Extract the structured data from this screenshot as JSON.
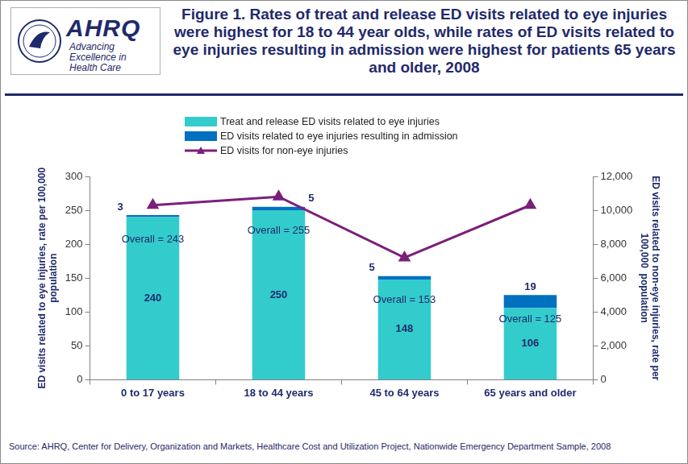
{
  "logo": {
    "name": "AHRQ",
    "tagline": "Advancing Excellence in Health Care"
  },
  "source": "Source: AHRQ, Center for Delivery, Organization and Markets, Healthcare Cost and Utilization Project, Nationwide Emergency Department Sample, 2008",
  "chart_data": {
    "type": "bar",
    "title": "Figure 1. Rates of treat and release ED visits related to eye injuries were highest for 18 to 44 year olds, while rates of ED visits related to eye injuries resulting in admission were highest for patients 65 years and older, 2008",
    "categories": [
      "0 to 17 years",
      "18 to 44 years",
      "45 to 64 years",
      "65 years and older"
    ],
    "stacked": true,
    "data_labels": true,
    "grid": false,
    "legend": "top",
    "y_label": "ED visits related to eye injuries, rate per 100,000 population",
    "y2_label": "ED visits related to non-eye injuries, rate per 100,000  population",
    "ylim": [
      0,
      300
    ],
    "yticks": [
      0,
      50,
      100,
      150,
      200,
      250,
      300
    ],
    "y2lim": [
      0,
      12000
    ],
    "y2ticks": [
      0,
      {
        "value": 2000,
        "label": "2,000"
      },
      {
        "value": 4000,
        "label": "4,000"
      },
      {
        "value": 6000,
        "label": "6,000"
      },
      {
        "value": 8000,
        "label": "8,000"
      },
      {
        "value": 10000,
        "label": "10,000"
      },
      {
        "value": 12000,
        "label": "12,000"
      }
    ],
    "series": [
      {
        "name": "Treat and release ED visits related to eye injuries",
        "color": "#33cccc",
        "values": [
          240,
          250,
          148,
          106
        ]
      },
      {
        "name": "ED visits related to eye injuries resulting in admission",
        "color": "#0070c0",
        "values": [
          3,
          5,
          5,
          19
        ]
      },
      {
        "name": "ED visits for non-eye injuries",
        "type": "line",
        "axis": "y2",
        "color": "#7b1f7b",
        "marker": "triangle",
        "data_labels": false,
        "values": [
          10300,
          10800,
          7200,
          10300
        ]
      }
    ],
    "annotations": [
      "Overall = 243",
      "Overall = 255",
      "Overall = 153",
      "Overall = 125"
    ]
  }
}
